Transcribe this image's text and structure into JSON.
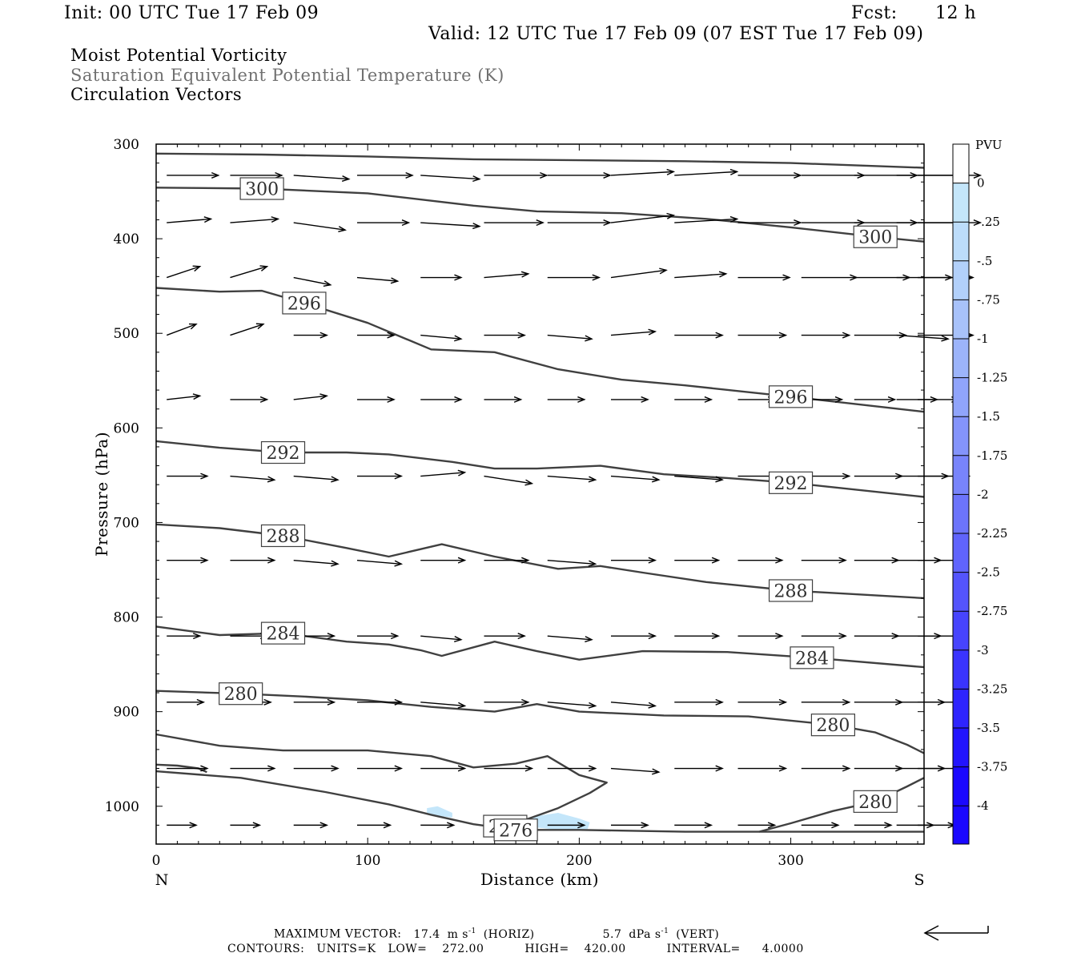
{
  "header": {
    "init": "Init: 00 UTC Tue 17 Feb 09",
    "fcst_label": "Fcst:",
    "fcst_value": "12 h",
    "valid": "Valid: 12 UTC Tue 17 Feb 09 (07 EST Tue 17 Feb 09)",
    "field1": "Moist Potential Vorticity",
    "field2": "Saturation Equivalent Potential Temperature (K)",
    "field3": "Circulation Vectors",
    "field1_color": "#000000",
    "field2_color": "#707070",
    "field3_color": "#000000"
  },
  "footer": {
    "max_vector_label": "MAXIMUM VECTOR:",
    "horiz_value": "17.4",
    "horiz_unit": "m s",
    "horiz_tag": "(HORIZ)",
    "vert_value": "5.7",
    "vert_unit": "dPa s",
    "vert_tag": "(VERT)",
    "exponent": "-1",
    "contours_label": "CONTOURS:",
    "units": "UNITS=K",
    "low_label": "LOW=",
    "low_value": "272.00",
    "high_label": "HIGH=",
    "high_value": "420.00",
    "interval_label": "INTERVAL=",
    "interval_value": "4.0000"
  },
  "chart_data": {
    "type": "line",
    "xlabel": "Distance (km)",
    "ylabel": "Pressure (hPa)",
    "xlim": [
      0,
      363
    ],
    "ylim": [
      1040,
      300
    ],
    "x_ticks": [
      0,
      100,
      200,
      300
    ],
    "y_ticks": [
      300,
      400,
      500,
      600,
      700,
      800,
      900,
      1000
    ],
    "x_end_labels": [
      "N",
      "S"
    ],
    "y_scale": "linear, inverted",
    "contour_units": "K",
    "contour_color": "#404040",
    "series": [
      {
        "name": "",
        "x": [
          0,
          50,
          100,
          150,
          200,
          250,
          300,
          363
        ],
        "values": [
          310,
          311,
          313,
          316,
          317,
          318,
          320,
          325
        ]
      },
      {
        "name": "300",
        "x": [
          0,
          50,
          100,
          150,
          180,
          220,
          260,
          300,
          340,
          363
        ],
        "values": [
          346,
          347,
          352,
          365,
          371,
          373,
          379,
          388,
          398,
          403
        ]
      },
      {
        "name": "296",
        "x": [
          0,
          30,
          50,
          70,
          100,
          130,
          160,
          190,
          220,
          250,
          300,
          363
        ],
        "values": [
          452,
          456,
          455,
          468,
          489,
          517,
          520,
          538,
          549,
          555,
          567,
          583
        ]
      },
      {
        "name": "292",
        "x": [
          0,
          30,
          60,
          90,
          110,
          140,
          160,
          180,
          210,
          240,
          270,
          300,
          363
        ],
        "values": [
          614,
          621,
          626,
          626,
          628,
          636,
          643,
          643,
          640,
          649,
          653,
          658,
          673
        ]
      },
      {
        "name": "288",
        "x": [
          0,
          30,
          60,
          90,
          110,
          135,
          160,
          190,
          210,
          230,
          260,
          300,
          363
        ],
        "values": [
          702,
          706,
          714,
          727,
          736,
          723,
          736,
          749,
          746,
          753,
          763,
          772,
          780
        ]
      },
      {
        "name": "284",
        "x": [
          0,
          30,
          60,
          90,
          110,
          125,
          135,
          160,
          180,
          200,
          230,
          270,
          310,
          363
        ],
        "values": [
          810,
          819,
          817,
          826,
          829,
          835,
          841,
          826,
          836,
          845,
          836,
          837,
          843,
          853
        ]
      },
      {
        "name": "280",
        "x": [
          0,
          40,
          70,
          100,
          130,
          160,
          180,
          200,
          240,
          280,
          320,
          340,
          355,
          363
        ],
        "values": [
          878,
          881,
          884,
          888,
          895,
          900,
          892,
          900,
          904,
          905,
          914,
          922,
          935,
          944
        ]
      },
      {
        "name": "280",
        "x": [
          0,
          30,
          60,
          100,
          130,
          150,
          170,
          185,
          200,
          213,
          205,
          190,
          175,
          165,
          160
        ],
        "values": [
          924,
          936,
          941,
          941,
          947,
          959,
          955,
          947,
          967,
          975,
          986,
          1002,
          1014,
          1021,
          1027
        ]
      },
      {
        "name": "280",
        "x": [
          285,
          300,
          320,
          340,
          355,
          363
        ],
        "values": [
          1027,
          1018,
          1005,
          995,
          979,
          970
        ]
      },
      {
        "name": "276",
        "x": [
          0,
          40,
          80,
          110,
          130,
          150,
          170,
          200,
          250,
          300,
          363
        ],
        "values": [
          963,
          970,
          985,
          998,
          1009,
          1019,
          1025,
          1025,
          1027,
          1027,
          1027
        ]
      },
      {
        "name": "",
        "x": [
          0,
          10,
          20,
          24
        ],
        "values": [
          956,
          957,
          960,
          964
        ]
      }
    ],
    "pv_shading": [
      {
        "range": [
          -0.5,
          -0.25
        ],
        "x": [
          128,
          133,
          140,
          140,
          133,
          128
        ],
        "values": [
          1002,
          1000,
          1007,
          1012,
          1010,
          1008
        ]
      },
      {
        "range": [
          -0.5,
          -0.25
        ],
        "x": [
          178,
          190,
          200,
          205,
          204,
          190,
          178
        ],
        "values": [
          1011,
          1007,
          1013,
          1017,
          1024,
          1025,
          1022
        ]
      }
    ],
    "colorbar": {
      "label": "PVU",
      "tick_labels": [
        "0",
        "-.25",
        "-.5",
        "-.75",
        "-1",
        "-1.25",
        "-1.5",
        "-1.75",
        "-2",
        "-2.25",
        "-2.5",
        "-2.75",
        "-3",
        "-3.25",
        "-3.5",
        "-3.75",
        "-4"
      ],
      "colors": [
        "#ffffff",
        "#c4e6fa",
        "#bcdcfa",
        "#b2d0fa",
        "#a8c2fa",
        "#9cb4fa",
        "#90a4fb",
        "#8494fb",
        "#7884fb",
        "#6c74fb",
        "#6064fc",
        "#5454fc",
        "#4744fd",
        "#3a34fd",
        "#2e24fe",
        "#2214fe",
        "#1a08ff"
      ]
    },
    "vector_rows": [
      {
        "p": 333,
        "u": [
          14,
          14,
          15,
          15,
          16,
          17,
          17,
          17,
          17,
          17,
          17,
          17,
          17,
          17
        ],
        "w": [
          0,
          0,
          1,
          0,
          1,
          0,
          0,
          -1,
          -1,
          0,
          0,
          0,
          0,
          0
        ]
      },
      {
        "p": 383,
        "u": [
          12,
          13,
          14,
          14,
          16,
          16,
          17,
          17,
          17,
          17,
          17,
          17,
          17,
          17
        ],
        "w": [
          -1,
          -1,
          2,
          0,
          1,
          0,
          0,
          -2,
          -1,
          0,
          0,
          0,
          0,
          0
        ]
      },
      {
        "p": 441,
        "u": [
          9,
          10,
          10,
          11,
          11,
          12,
          14,
          15,
          14,
          14,
          15,
          15,
          15,
          15
        ],
        "w": [
          -3,
          -3,
          2,
          1,
          0,
          -1,
          0,
          -2,
          -1,
          0,
          0,
          0,
          0,
          0
        ]
      },
      {
        "p": 502,
        "u": [
          8,
          9,
          9,
          10,
          11,
          11,
          12,
          12,
          13,
          13,
          13,
          14,
          14,
          15
        ],
        "w": [
          -3,
          -3,
          0,
          0,
          1,
          0,
          1,
          -1,
          0,
          0,
          0,
          0,
          1,
          0
        ]
      },
      {
        "p": 570,
        "u": [
          9,
          10,
          9,
          10,
          11,
          10,
          10,
          10,
          10,
          10,
          11,
          11,
          11,
          11
        ],
        "w": [
          -1,
          0,
          -1,
          0,
          0,
          0,
          0,
          0,
          0,
          0,
          0,
          0,
          0,
          0
        ]
      },
      {
        "p": 651,
        "u": [
          11,
          12,
          12,
          12,
          12,
          13,
          13,
          13,
          13,
          13,
          13,
          13,
          14,
          14
        ],
        "w": [
          0,
          1,
          1,
          0,
          -1,
          2,
          1,
          1,
          1,
          0,
          0,
          0,
          0,
          0
        ]
      },
      {
        "p": 740,
        "u": [
          11,
          12,
          12,
          12,
          12,
          12,
          13,
          12,
          12,
          12,
          12,
          12,
          12,
          12
        ],
        "w": [
          0,
          0,
          1,
          1,
          0,
          0,
          1,
          0,
          0,
          0,
          0,
          0,
          0,
          0
        ]
      },
      {
        "p": 820,
        "u": [
          9,
          10,
          11,
          11,
          11,
          11,
          12,
          12,
          12,
          12,
          12,
          12,
          12,
          12
        ],
        "w": [
          0,
          0,
          0,
          0,
          1,
          0,
          1,
          0,
          0,
          0,
          0,
          0,
          0,
          0
        ]
      },
      {
        "p": 890,
        "u": [
          10,
          11,
          11,
          12,
          12,
          12,
          13,
          12,
          13,
          13,
          13,
          13,
          13,
          13
        ],
        "w": [
          0,
          0,
          0,
          0,
          1,
          0,
          1,
          1,
          0,
          0,
          0,
          0,
          0,
          0
        ]
      },
      {
        "p": 960,
        "u": [
          11,
          12,
          12,
          12,
          12,
          13,
          13,
          13,
          13,
          13,
          13,
          13,
          13,
          13
        ],
        "w": [
          0,
          0,
          0,
          0,
          0,
          0,
          0,
          1,
          0,
          0,
          0,
          0,
          0,
          0
        ]
      },
      {
        "p": 1020,
        "u": [
          8,
          8,
          9,
          9,
          9,
          10,
          10,
          10,
          10,
          10,
          10,
          10,
          10,
          10
        ],
        "w": [
          0,
          0,
          0,
          0,
          0,
          0,
          0,
          0,
          0,
          0,
          0,
          0,
          0,
          0
        ]
      }
    ],
    "vector_x": [
      5,
      35,
      65,
      95,
      125,
      155,
      185,
      215,
      245,
      275,
      305,
      330,
      350,
      360
    ]
  }
}
